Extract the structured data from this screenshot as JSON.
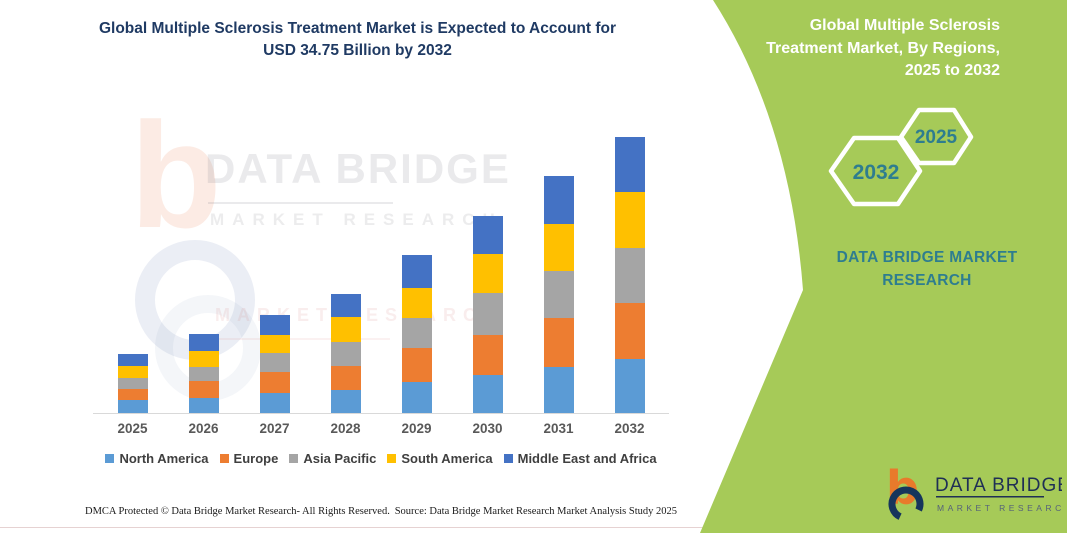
{
  "title": "Global Multiple Sclerosis Treatment Market is Expected to Account for USD 34.75 Billion by 2032",
  "right_panel": {
    "heading": "Global Multiple Sclerosis Treatment Market, By Regions, 2025 to 2032",
    "hexagons": [
      {
        "label": "2032"
      },
      {
        "label": "2025"
      }
    ],
    "brand": "DATA BRIDGE MARKET RESEARCH",
    "colors": {
      "green": "#a6ca58",
      "teal": "#2e7d8f"
    }
  },
  "logo": {
    "name": "DATA BRIDGE",
    "sub": "MARKET RESEARCH"
  },
  "watermark": {
    "line1": "DATA BRIDGE",
    "line2": "MARKET RESEARCH",
    "line3": "MARKET RESEARCH"
  },
  "footer": {
    "left": "DMCA Protected © Data Bridge Market Research-  All Rights Reserved.",
    "right": "Source: Data Bridge Market Research  Market Analysis Study 2025"
  },
  "chart_data": {
    "type": "bar",
    "stacked": true,
    "title": "Global Multiple Sclerosis Treatment Market is Expected to Account for USD 34.75 Billion by 2032",
    "unit": "USD Billion",
    "categories": [
      "2025",
      "2026",
      "2027",
      "2028",
      "2029",
      "2030",
      "2031",
      "2032"
    ],
    "series": [
      {
        "name": "North America",
        "color": "#5B9BD5",
        "values": [
          1.58,
          1.88,
          2.51,
          2.93,
          3.89,
          4.81,
          5.85,
          6.82
        ]
      },
      {
        "name": "Europe",
        "color": "#ED7D31",
        "values": [
          1.43,
          2.21,
          2.59,
          3.02,
          4.27,
          5.03,
          6.08,
          7.07
        ]
      },
      {
        "name": "Asia Pacific",
        "color": "#A5A5A5",
        "values": [
          1.38,
          1.76,
          2.44,
          2.93,
          3.77,
          5.24,
          5.98,
          6.91
        ]
      },
      {
        "name": "South America",
        "color": "#FFC000",
        "values": [
          1.55,
          1.97,
          2.3,
          3.14,
          3.84,
          4.94,
          5.87,
          7.04
        ]
      },
      {
        "name": "Middle East and Africa",
        "color": "#4472C4",
        "values": [
          1.51,
          2.1,
          2.51,
          2.94,
          4.11,
          4.77,
          6.03,
          6.91
        ]
      }
    ],
    "totals": [
      7.45,
      9.92,
      12.35,
      14.96,
      19.88,
      24.79,
      29.81,
      34.75
    ],
    "ylim": [
      0,
      35
    ],
    "grid": false,
    "axis_labels_visible": false,
    "legend_position": "bottom"
  }
}
